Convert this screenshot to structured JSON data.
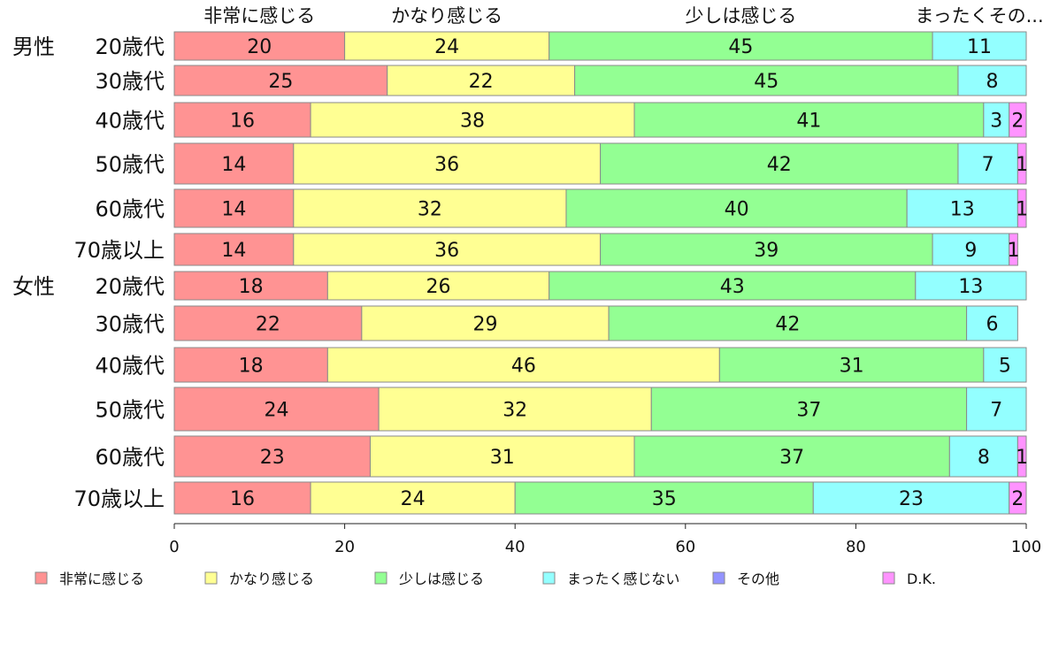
{
  "chart_data": {
    "type": "bar",
    "orientation": "horizontal",
    "stacked": true,
    "xlim": [
      0,
      100
    ],
    "xticks": [
      0,
      20,
      40,
      60,
      80,
      100
    ],
    "column_headers": [
      "非常に感じる",
      "かなり感じる",
      "少しは感じる",
      "まったくその..."
    ],
    "legend_position": "bottom",
    "series": [
      {
        "name": "非常に感じる",
        "color": "#ff9393"
      },
      {
        "name": "かなり感じる",
        "color": "#ffff93"
      },
      {
        "name": "少しは感じる",
        "color": "#93ff93"
      },
      {
        "name": "まったく感じない",
        "color": "#93ffff"
      },
      {
        "name": "その他",
        "color": "#9393ff"
      },
      {
        "name": "D.K.",
        "color": "#ff93ff"
      }
    ],
    "rows": [
      {
        "group": "男性",
        "label": "20歳代",
        "values": [
          20,
          24,
          45,
          11,
          0,
          0
        ]
      },
      {
        "group": "",
        "label": "30歳代",
        "values": [
          25,
          22,
          45,
          8,
          0,
          0
        ]
      },
      {
        "group": "",
        "label": "40歳代",
        "values": [
          16,
          38,
          41,
          3,
          0,
          2
        ]
      },
      {
        "group": "",
        "label": "50歳代",
        "values": [
          14,
          36,
          42,
          7,
          0,
          1
        ]
      },
      {
        "group": "",
        "label": "60歳代",
        "values": [
          14,
          32,
          40,
          13,
          0,
          1
        ]
      },
      {
        "group": "",
        "label": "70歳以上",
        "values": [
          14,
          36,
          39,
          9,
          0,
          1
        ]
      },
      {
        "group": "女性",
        "label": "20歳代",
        "values": [
          18,
          26,
          43,
          13,
          0,
          0
        ]
      },
      {
        "group": "",
        "label": "30歳代",
        "values": [
          22,
          29,
          42,
          6,
          0,
          0
        ]
      },
      {
        "group": "",
        "label": "40歳代",
        "values": [
          18,
          46,
          31,
          5,
          0,
          0
        ]
      },
      {
        "group": "",
        "label": "50歳代",
        "values": [
          24,
          32,
          37,
          7,
          0,
          0
        ]
      },
      {
        "group": "",
        "label": "60歳代",
        "values": [
          23,
          31,
          37,
          8,
          0,
          1
        ]
      },
      {
        "group": "",
        "label": "70歳以上",
        "values": [
          16,
          24,
          35,
          23,
          0,
          2
        ]
      }
    ]
  }
}
